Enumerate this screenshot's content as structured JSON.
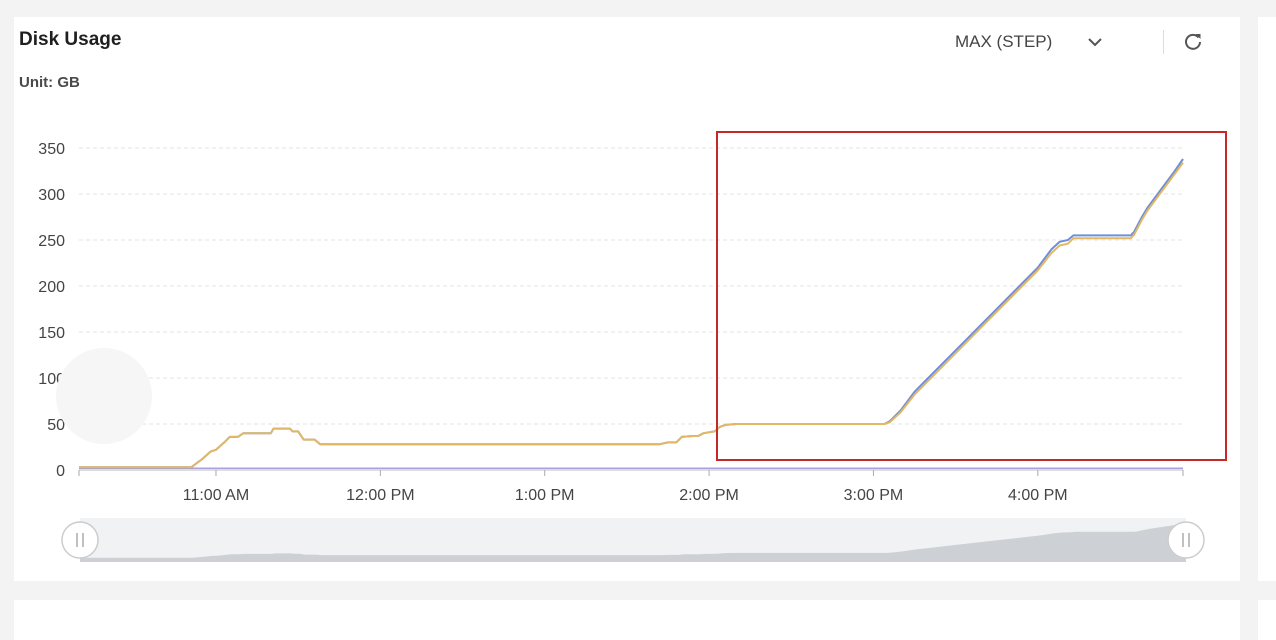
{
  "panel": {
    "title": "Disk Usage",
    "unit_label": "Unit: GB",
    "aggregation": "MAX (STEP)"
  },
  "icons": {
    "dropdown": "chevron-down-icon",
    "refresh": "refresh-icon",
    "slider_handle": "drag-handle-icon"
  },
  "colors": {
    "series_a": "#6f8fd8",
    "series_b": "#e2b865",
    "series_c": "#a9a0dc",
    "highlight_box": "#c62828",
    "grid": "#e3e3e3",
    "axis": "#999999"
  },
  "chart_data": {
    "type": "line",
    "title": "Disk Usage",
    "ylabel": "Unit: GB",
    "ylim": [
      0,
      350
    ],
    "yticks": [
      0,
      50,
      100,
      150,
      200,
      250,
      300,
      350
    ],
    "x_unit": "minutes after 10:00 AM",
    "xlim": [
      0,
      385
    ],
    "xticks": [
      {
        "x": 50,
        "label": "11:00 AM"
      },
      {
        "x": 110,
        "label": "12:00 PM"
      },
      {
        "x": 170,
        "label": "1:00 PM"
      },
      {
        "x": 230,
        "label": "2:00 PM"
      },
      {
        "x": 290,
        "label": "3:00 PM"
      },
      {
        "x": 350,
        "label": "4:00 PM"
      }
    ],
    "grid": true,
    "series": [
      {
        "name": "",
        "color": "#6f8fd8",
        "points": [
          [
            0,
            3
          ],
          [
            41,
            3
          ],
          [
            45,
            12
          ],
          [
            48,
            20
          ],
          [
            50,
            22
          ],
          [
            53,
            30
          ],
          [
            55,
            36
          ],
          [
            58,
            36
          ],
          [
            60,
            40
          ],
          [
            69,
            40
          ],
          [
            70,
            40
          ],
          [
            71,
            45
          ],
          [
            77,
            45
          ],
          [
            78,
            42
          ],
          [
            80,
            42
          ],
          [
            82,
            33
          ],
          [
            86,
            33
          ],
          [
            88,
            28
          ],
          [
            212,
            28
          ],
          [
            215,
            30
          ],
          [
            218,
            30
          ],
          [
            220,
            36
          ],
          [
            224,
            37
          ],
          [
            226,
            37
          ],
          [
            228,
            40
          ],
          [
            232,
            42
          ],
          [
            234,
            47
          ],
          [
            236,
            49
          ],
          [
            240,
            50
          ],
          [
            280,
            50
          ],
          [
            294,
            50
          ],
          [
            296,
            53
          ],
          [
            300,
            65
          ],
          [
            305,
            85
          ],
          [
            310,
            100
          ],
          [
            320,
            130
          ],
          [
            330,
            160
          ],
          [
            340,
            190
          ],
          [
            350,
            220
          ],
          [
            355,
            240
          ],
          [
            358,
            248
          ],
          [
            361,
            250
          ],
          [
            363,
            255
          ],
          [
            384,
            255
          ],
          [
            384.5,
            257
          ],
          [
            385,
            258
          ],
          [
            388,
            275
          ],
          [
            390,
            285
          ],
          [
            395,
            305
          ],
          [
            400,
            325
          ],
          [
            403,
            338
          ]
        ]
      },
      {
        "name": "",
        "color": "#e2b865",
        "points": [
          [
            0,
            3
          ],
          [
            41,
            3
          ],
          [
            45,
            12
          ],
          [
            48,
            20
          ],
          [
            50,
            22
          ],
          [
            53,
            30
          ],
          [
            55,
            36
          ],
          [
            58,
            36
          ],
          [
            60,
            40
          ],
          [
            69,
            40
          ],
          [
            70,
            40
          ],
          [
            71,
            45
          ],
          [
            77,
            45
          ],
          [
            78,
            42
          ],
          [
            80,
            42
          ],
          [
            82,
            33
          ],
          [
            86,
            33
          ],
          [
            88,
            28
          ],
          [
            212,
            28
          ],
          [
            215,
            30
          ],
          [
            218,
            30
          ],
          [
            220,
            36
          ],
          [
            224,
            37
          ],
          [
            226,
            37
          ],
          [
            228,
            40
          ],
          [
            232,
            42
          ],
          [
            234,
            47
          ],
          [
            236,
            49
          ],
          [
            240,
            50
          ],
          [
            280,
            50
          ],
          [
            294,
            50
          ],
          [
            296,
            52
          ],
          [
            300,
            63
          ],
          [
            305,
            82
          ],
          [
            310,
            97
          ],
          [
            320,
            127
          ],
          [
            330,
            157
          ],
          [
            340,
            187
          ],
          [
            350,
            217
          ],
          [
            355,
            236
          ],
          [
            358,
            244
          ],
          [
            361,
            246
          ],
          [
            363,
            252
          ],
          [
            384,
            252
          ],
          [
            384.5,
            254
          ],
          [
            385,
            255
          ],
          [
            388,
            272
          ],
          [
            390,
            282
          ],
          [
            395,
            302
          ],
          [
            400,
            322
          ],
          [
            403,
            334
          ]
        ]
      },
      {
        "name": "",
        "color": "#a9a0dc",
        "points": [
          [
            0,
            2
          ],
          [
            403,
            2
          ]
        ]
      }
    ],
    "annotations": [
      {
        "type": "highlight-box",
        "x_from": 223,
        "x_to": 405,
        "y_from": 10,
        "y_to": 368
      }
    ],
    "range_slider": {
      "start": 0,
      "end": 403
    }
  }
}
